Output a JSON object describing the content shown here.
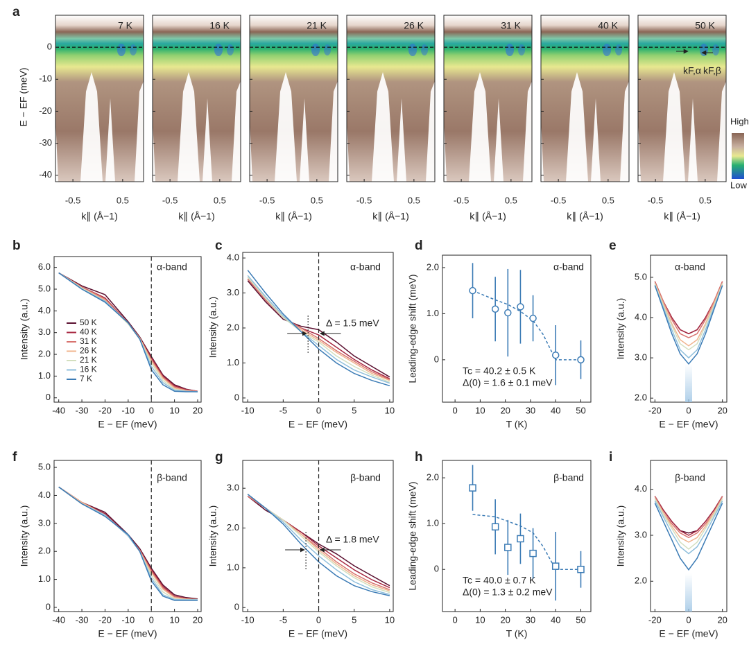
{
  "chart_data": [
    {
      "type": "arpes",
      "label": "a",
      "panels": [
        "7 K",
        "16 K",
        "21 K",
        "26 K",
        "31 K",
        "40 K",
        "50 K"
      ],
      "xlabel": "k∥ (Å−1)",
      "ylabel": "E − EF (meV)",
      "xlim": [
        -0.85,
        0.92
      ],
      "ylim": [
        -42,
        10
      ],
      "xticks": [
        -0.5,
        0.5
      ],
      "yticks": [
        0,
        -10,
        -20,
        -30,
        -40
      ],
      "ef_line": 0,
      "colorbar": [
        "High",
        "Low"
      ],
      "annotations": [
        "kF,α",
        "kF,β"
      ]
    },
    {
      "type": "line",
      "label": "b",
      "annotations": [
        "α-band"
      ],
      "xlabel": "E − EF (meV)",
      "ylabel": "Intensity (a.u.)",
      "xlim": [
        -42,
        21.5
      ],
      "ylim": [
        -0.2,
        6.5
      ],
      "xticks": [
        -40,
        -30,
        -20,
        -10,
        0,
        10,
        20
      ],
      "yticks": [
        0,
        {
          "value": 1,
          "label": "1.0"
        },
        {
          "value": 2,
          "label": "2.0"
        },
        {
          "value": 3,
          "label": "3.0"
        },
        {
          "value": 4,
          "label": "4.0"
        },
        {
          "value": 5,
          "label": "5.0"
        },
        {
          "value": 6,
          "label": "6.0"
        }
      ],
      "vline": 0,
      "legend": true,
      "x": [
        -40,
        -30,
        -20,
        -10,
        -5,
        0,
        5,
        10,
        15,
        20
      ],
      "series": [
        {
          "name": "50 K",
          "color": "#5b1030",
          "values": [
            5.75,
            5.15,
            4.75,
            3.5,
            2.8,
            1.9,
            1.05,
            0.6,
            0.4,
            0.3
          ]
        },
        {
          "name": "40 K",
          "color": "#a82a43",
          "values": [
            5.75,
            5.1,
            4.6,
            3.45,
            2.75,
            1.85,
            1.0,
            0.55,
            0.38,
            0.3
          ]
        },
        {
          "name": "31 K",
          "color": "#d8736f",
          "values": [
            5.75,
            5.1,
            4.55,
            3.45,
            2.75,
            1.75,
            0.95,
            0.5,
            0.35,
            0.3
          ]
        },
        {
          "name": "26 K",
          "color": "#f0b48e",
          "values": [
            5.75,
            5.05,
            4.5,
            3.4,
            2.75,
            1.7,
            0.9,
            0.45,
            0.33,
            0.28
          ]
        },
        {
          "name": "21 K",
          "color": "#d3dfbf",
          "values": [
            5.75,
            5.05,
            4.45,
            3.4,
            2.7,
            1.6,
            0.8,
            0.4,
            0.3,
            0.28
          ]
        },
        {
          "name": "16 K",
          "color": "#8fbfdc",
          "values": [
            5.75,
            5.0,
            4.45,
            3.45,
            2.7,
            1.45,
            0.7,
            0.35,
            0.3,
            0.28
          ]
        },
        {
          "name": "7 K",
          "color": "#3b7bb5",
          "values": [
            5.75,
            5.0,
            4.4,
            3.45,
            2.7,
            1.3,
            0.6,
            0.3,
            0.28,
            0.28
          ]
        }
      ]
    },
    {
      "type": "line",
      "label": "c",
      "annotations": [
        "α-band",
        "Δ = 1.5 meV"
      ],
      "xlabel": "E − EF (meV)",
      "ylabel": "Intensity (a.u.)",
      "xlim": [
        -10.7,
        10.5
      ],
      "ylim": [
        -0.12,
        4.16
      ],
      "xticks": [
        -10,
        -5,
        0,
        5,
        10
      ],
      "yticks": [
        0,
        {
          "value": 1,
          "label": "1.0"
        },
        {
          "value": 2,
          "label": "2.0"
        },
        {
          "value": 3,
          "label": "3.0"
        },
        {
          "value": 4,
          "label": "4.0"
        }
      ],
      "vline": 0,
      "edge": -1.5,
      "x": [
        -10,
        -7.5,
        -5,
        -2.5,
        0,
        2.5,
        5,
        7.5,
        10
      ],
      "series": [
        {
          "color": "#5b1030",
          "values": [
            3.35,
            2.75,
            2.25,
            2.05,
            1.95,
            1.6,
            1.2,
            0.9,
            0.6
          ]
        },
        {
          "color": "#a82a43",
          "values": [
            3.4,
            2.8,
            2.3,
            2.0,
            1.8,
            1.45,
            1.1,
            0.8,
            0.55
          ]
        },
        {
          "color": "#d8736f",
          "values": [
            3.4,
            2.8,
            2.3,
            2.0,
            1.7,
            1.35,
            1.05,
            0.75,
            0.52
          ]
        },
        {
          "color": "#f0b48e",
          "values": [
            3.45,
            2.85,
            2.3,
            1.95,
            1.65,
            1.3,
            1.0,
            0.7,
            0.5
          ]
        },
        {
          "color": "#d3dfbf",
          "values": [
            3.45,
            2.85,
            2.3,
            1.9,
            1.6,
            1.2,
            0.9,
            0.65,
            0.45
          ]
        },
        {
          "color": "#8fbfdc",
          "values": [
            3.5,
            2.9,
            2.35,
            1.9,
            1.5,
            1.1,
            0.8,
            0.6,
            0.42
          ]
        },
        {
          "color": "#3b7bb5",
          "values": [
            3.65,
            3.0,
            2.4,
            1.9,
            1.4,
            1.0,
            0.7,
            0.5,
            0.35
          ]
        }
      ]
    },
    {
      "type": "scatter",
      "label": "d",
      "annotations": [
        "α-band",
        "Tc = 40.2 ± 0.5 K",
        "Δ(0) = 1.6 ± 0.1 meV"
      ],
      "xlabel": "T (K)",
      "ylabel": "Leading-edge shift (meV)",
      "xlim": [
        -5,
        54
      ],
      "ylim": [
        -0.92,
        2.27
      ],
      "xticks": [
        0,
        10,
        20,
        30,
        40,
        50
      ],
      "yticks": [
        0,
        {
          "value": 1,
          "label": "1.0"
        },
        {
          "value": 2,
          "label": "2.0"
        }
      ],
      "marker": "circle",
      "color": "#3b7bb5",
      "x": [
        7,
        16,
        21,
        26,
        31,
        40,
        50
      ],
      "values": [
        1.5,
        1.1,
        1.02,
        1.15,
        0.9,
        0.1,
        0.0
      ],
      "errors": [
        0.6,
        0.7,
        0.95,
        0.8,
        0.5,
        0.65,
        0.42
      ],
      "fit": {
        "x": [
          7,
          16,
          21,
          26,
          31,
          35,
          40,
          50
        ],
        "y": [
          1.5,
          1.3,
          1.2,
          1.05,
          0.85,
          0.55,
          0.0,
          0.0
        ]
      }
    },
    {
      "type": "line",
      "label": "e",
      "annotations": [
        "α-band"
      ],
      "xlabel": "E − EF (meV)",
      "ylabel": "Intensity (a.u.)",
      "xlim": [
        -22.6,
        22.6
      ],
      "ylim": [
        1.9,
        5.55
      ],
      "xticks": [
        -20,
        0,
        20
      ],
      "yticks": [
        {
          "value": 2,
          "label": "2.0"
        },
        {
          "value": 3,
          "label": "3.0"
        },
        {
          "value": 4,
          "label": "4.0"
        },
        {
          "value": 5,
          "label": "5.0"
        }
      ],
      "x": [
        -20,
        -15,
        -10,
        -5,
        0,
        5,
        10,
        15,
        20
      ],
      "series": [
        {
          "color": "#5b1030",
          "values": [
            4.85,
            4.4,
            4.0,
            3.7,
            3.6,
            3.7,
            4.0,
            4.4,
            4.85
          ]
        },
        {
          "color": "#a82a43",
          "values": [
            4.9,
            4.4,
            4.0,
            3.7,
            3.6,
            3.7,
            4.0,
            4.4,
            4.9
          ]
        },
        {
          "color": "#d8736f",
          "values": [
            4.9,
            4.4,
            3.95,
            3.6,
            3.5,
            3.6,
            3.95,
            4.4,
            4.9
          ]
        },
        {
          "color": "#f0b48e",
          "values": [
            4.85,
            4.35,
            3.85,
            3.45,
            3.3,
            3.45,
            3.85,
            4.35,
            4.85
          ]
        },
        {
          "color": "#d3dfbf",
          "values": [
            4.85,
            4.3,
            3.8,
            3.35,
            3.2,
            3.35,
            3.8,
            4.3,
            4.85
          ]
        },
        {
          "color": "#8fbfdc",
          "values": [
            4.8,
            4.25,
            3.7,
            3.2,
            3.0,
            3.2,
            3.7,
            4.25,
            4.8
          ]
        },
        {
          "color": "#3b7bb5",
          "values": [
            4.8,
            4.2,
            3.6,
            3.1,
            2.85,
            3.1,
            3.6,
            4.2,
            4.8
          ]
        }
      ]
    },
    {
      "type": "line",
      "label": "f",
      "annotations": [
        "β-band"
      ],
      "xlabel": "E − EF (meV)",
      "ylabel": "Intensity (a.u.)",
      "xlim": [
        -42,
        21.5
      ],
      "ylim": [
        -0.15,
        5.25
      ],
      "xticks": [
        -40,
        -30,
        -20,
        -10,
        0,
        10,
        20
      ],
      "yticks": [
        0,
        {
          "value": 1,
          "label": "1.0"
        },
        {
          "value": 2,
          "label": "2.0"
        },
        {
          "value": 3,
          "label": "3.0"
        },
        {
          "value": 4,
          "label": "4.0"
        },
        {
          "value": 5,
          "label": "5.0"
        }
      ],
      "vline": 0,
      "x": [
        -40,
        -30,
        -20,
        -10,
        -5,
        0,
        5,
        10,
        15,
        20
      ],
      "series": [
        {
          "color": "#5b1030",
          "values": [
            4.3,
            3.75,
            3.4,
            2.6,
            2.1,
            1.4,
            0.8,
            0.45,
            0.35,
            0.3
          ]
        },
        {
          "color": "#a82a43",
          "values": [
            4.3,
            3.75,
            3.35,
            2.55,
            2.05,
            1.35,
            0.75,
            0.4,
            0.32,
            0.28
          ]
        },
        {
          "color": "#d8736f",
          "values": [
            4.3,
            3.75,
            3.3,
            2.55,
            2.05,
            1.3,
            0.7,
            0.38,
            0.3,
            0.28
          ]
        },
        {
          "color": "#f0b48e",
          "values": [
            4.3,
            3.75,
            3.3,
            2.55,
            2.0,
            1.25,
            0.65,
            0.35,
            0.3,
            0.28
          ]
        },
        {
          "color": "#d3dfbf",
          "values": [
            4.3,
            3.7,
            3.3,
            2.55,
            2.0,
            1.15,
            0.55,
            0.3,
            0.28,
            0.27
          ]
        },
        {
          "color": "#8fbfdc",
          "values": [
            4.3,
            3.7,
            3.3,
            2.55,
            2.0,
            1.05,
            0.45,
            0.28,
            0.27,
            0.27
          ]
        },
        {
          "color": "#3b7bb5",
          "values": [
            4.3,
            3.7,
            3.25,
            2.6,
            2.0,
            0.95,
            0.4,
            0.25,
            0.25,
            0.25
          ]
        }
      ]
    },
    {
      "type": "line",
      "label": "g",
      "annotations": [
        "β-band",
        "Δ = 1.8 meV"
      ],
      "xlabel": "E − EF (meV)",
      "ylabel": "Intensity (a.u.)",
      "xlim": [
        -10.7,
        10.5
      ],
      "ylim": [
        -0.1,
        3.7
      ],
      "xticks": [
        -10,
        -5,
        0,
        5,
        10
      ],
      "yticks": [
        0,
        {
          "value": 1,
          "label": "1.0"
        },
        {
          "value": 2,
          "label": "2.0"
        },
        {
          "value": 3,
          "label": "3.0"
        }
      ],
      "vline": 0,
      "edge": -1.8,
      "x": [
        -10,
        -7.5,
        -5,
        -2.5,
        0,
        2.5,
        5,
        7.5,
        10
      ],
      "series": [
        {
          "color": "#5b1030",
          "values": [
            2.8,
            2.45,
            2.2,
            1.9,
            1.6,
            1.35,
            1.05,
            0.8,
            0.55
          ]
        },
        {
          "color": "#a82a43",
          "values": [
            2.8,
            2.5,
            2.2,
            1.9,
            1.55,
            1.25,
            0.95,
            0.7,
            0.5
          ]
        },
        {
          "color": "#d8736f",
          "values": [
            2.8,
            2.5,
            2.2,
            1.85,
            1.5,
            1.15,
            0.85,
            0.62,
            0.45
          ]
        },
        {
          "color": "#f0b48e",
          "values": [
            2.85,
            2.5,
            2.2,
            1.85,
            1.45,
            1.1,
            0.8,
            0.57,
            0.42
          ]
        },
        {
          "color": "#d3dfbf",
          "values": [
            2.85,
            2.5,
            2.2,
            1.8,
            1.4,
            1.05,
            0.75,
            0.52,
            0.38
          ]
        },
        {
          "color": "#8fbfdc",
          "values": [
            2.85,
            2.5,
            2.15,
            1.7,
            1.3,
            0.95,
            0.65,
            0.45,
            0.33
          ]
        },
        {
          "color": "#3b7bb5",
          "values": [
            2.85,
            2.5,
            2.1,
            1.6,
            1.15,
            0.8,
            0.55,
            0.4,
            0.3
          ]
        }
      ]
    },
    {
      "type": "scatter",
      "label": "h",
      "annotations": [
        "β-band",
        "Tc = 40.0 ± 0.7 K",
        "Δ(0) = 1.3 ± 0.2 meV"
      ],
      "xlabel": "T (K)",
      "ylabel": "Leading-edge shift (meV)",
      "xlim": [
        -5,
        54
      ],
      "ylim": [
        -0.92,
        2.38
      ],
      "xticks": [
        0,
        10,
        20,
        30,
        40,
        50
      ],
      "yticks": [
        0,
        {
          "value": 1,
          "label": "1.0"
        },
        {
          "value": 2,
          "label": "2.0"
        }
      ],
      "marker": "square",
      "color": "#3b7bb5",
      "x": [
        7,
        16,
        21,
        26,
        31,
        40,
        50
      ],
      "values": [
        1.78,
        0.93,
        0.48,
        0.67,
        0.35,
        0.07,
        0.0
      ],
      "errors": [
        0.5,
        0.6,
        0.6,
        0.55,
        0.55,
        0.75,
        0.4
      ],
      "fit": {
        "x": [
          7,
          16,
          21,
          26,
          31,
          35,
          40,
          50
        ],
        "y": [
          1.2,
          1.15,
          1.05,
          0.95,
          0.8,
          0.5,
          0.0,
          0.0
        ]
      }
    },
    {
      "type": "line",
      "label": "i",
      "annotations": [
        "β-band"
      ],
      "xlabel": "E − EF (meV)",
      "ylabel": "Intensity (a.u.)",
      "xlim": [
        -22.6,
        22.6
      ],
      "ylim": [
        1.34,
        4.63
      ],
      "xticks": [
        -20,
        0,
        20
      ],
      "yticks": [
        {
          "value": 2,
          "label": "2.0"
        },
        {
          "value": 3,
          "label": "3.0"
        },
        {
          "value": 4,
          "label": "4.0"
        }
      ],
      "x": [
        -20,
        -15,
        -10,
        -5,
        0,
        5,
        10,
        15,
        20
      ],
      "series": [
        {
          "color": "#5b1030",
          "values": [
            3.85,
            3.55,
            3.3,
            3.1,
            3.05,
            3.1,
            3.3,
            3.55,
            3.85
          ]
        },
        {
          "color": "#a82a43",
          "values": [
            3.85,
            3.55,
            3.3,
            3.1,
            3.0,
            3.1,
            3.3,
            3.55,
            3.85
          ]
        },
        {
          "color": "#d8736f",
          "values": [
            3.85,
            3.5,
            3.25,
            3.05,
            2.95,
            3.05,
            3.25,
            3.5,
            3.85
          ]
        },
        {
          "color": "#f0b48e",
          "values": [
            3.8,
            3.5,
            3.2,
            2.95,
            2.85,
            2.95,
            3.2,
            3.5,
            3.8
          ]
        },
        {
          "color": "#d3dfbf",
          "values": [
            3.8,
            3.45,
            3.15,
            2.85,
            2.7,
            2.85,
            3.15,
            3.45,
            3.8
          ]
        },
        {
          "color": "#8fbfdc",
          "values": [
            3.75,
            3.4,
            3.05,
            2.75,
            2.6,
            2.75,
            3.05,
            3.4,
            3.75
          ]
        },
        {
          "color": "#3b7bb5",
          "values": [
            3.7,
            3.3,
            2.9,
            2.5,
            2.25,
            2.5,
            2.9,
            3.3,
            3.7
          ]
        }
      ]
    }
  ]
}
